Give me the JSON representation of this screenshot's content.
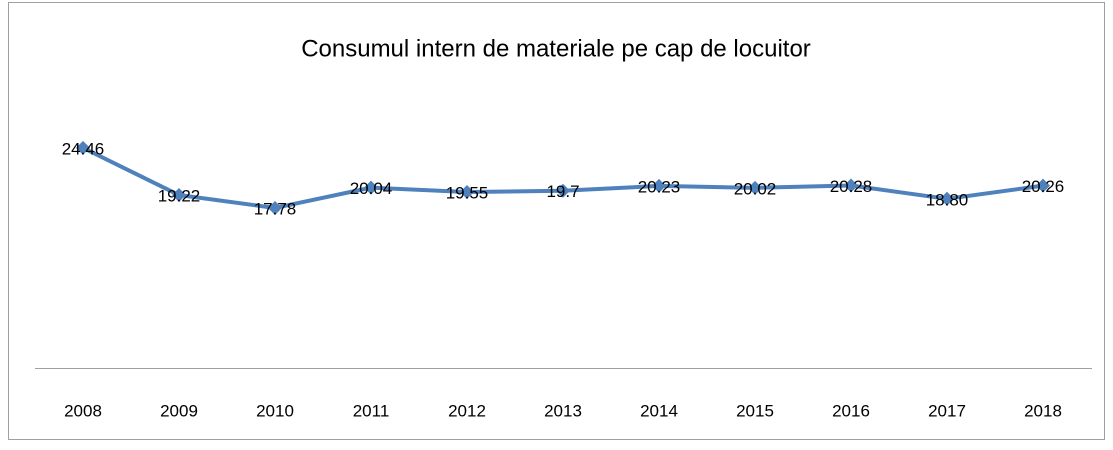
{
  "chart_data": {
    "type": "line",
    "title": "Consumul intern de materiale pe cap de locuitor",
    "categories": [
      "2008",
      "2009",
      "2010",
      "2011",
      "2012",
      "2013",
      "2014",
      "2015",
      "2016",
      "2017",
      "2018"
    ],
    "series": [
      {
        "color": "#4f81bd",
        "values": [
          24.46,
          19.22,
          17.78,
          20.04,
          19.55,
          19.7,
          20.23,
          20.02,
          20.28,
          18.8,
          20.26
        ],
        "value_labels": [
          "24.46",
          "19.22",
          "17.78",
          "20.04",
          "19.55",
          "19.7",
          "20.23",
          "20.02",
          "20.28",
          "18.80",
          "20.26"
        ]
      }
    ],
    "ylim": [
      0,
      30
    ]
  }
}
